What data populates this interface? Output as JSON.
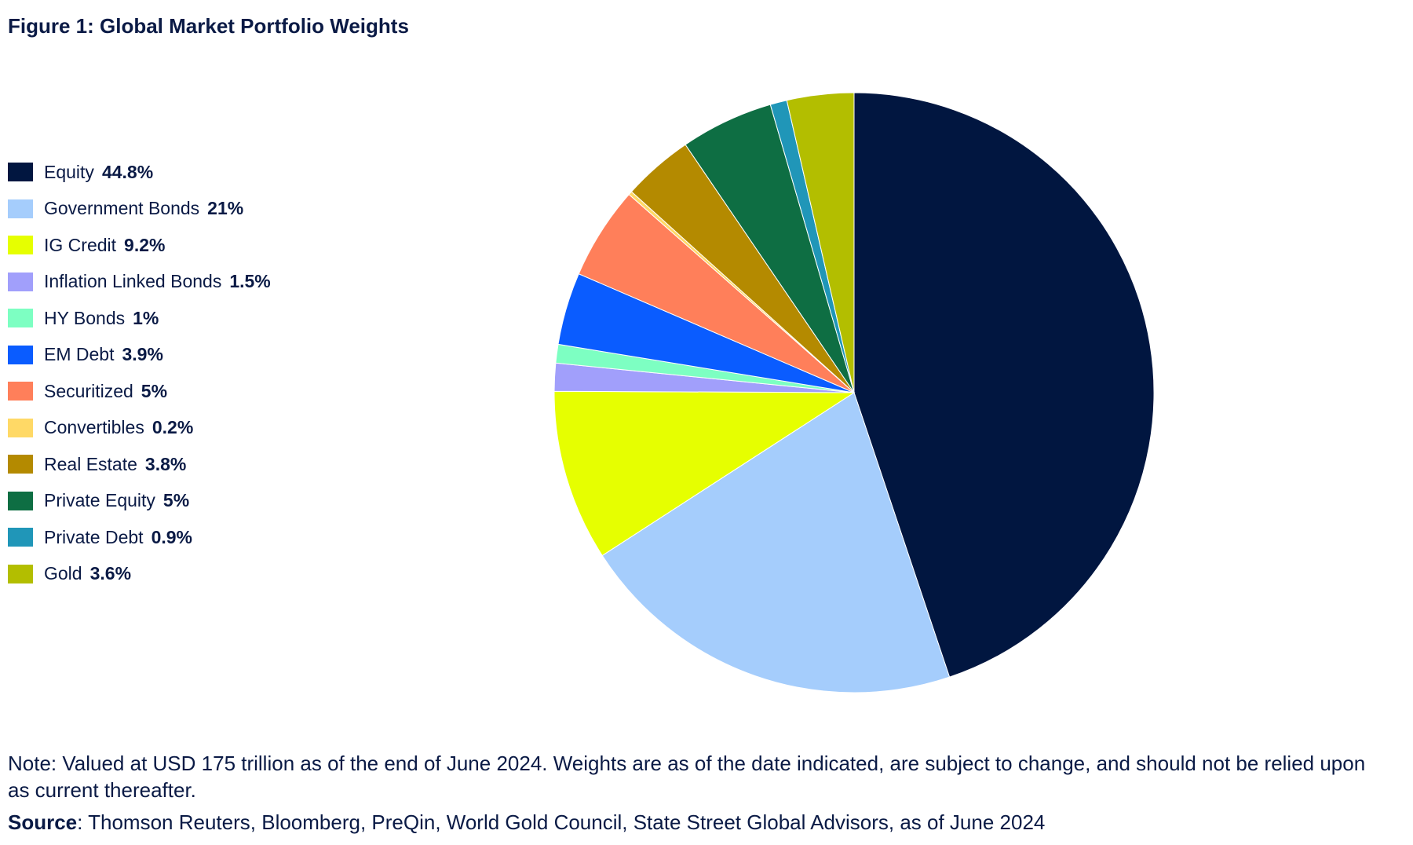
{
  "figure": {
    "title": "Figure 1: Global Market Portfolio Weights",
    "note": "Note: Valued at USD 175 trillion as of the end of June 2024. Weights are as of the date indicated, are subject to change, and should not be relied upon as current thereafter.",
    "source_label": "Source",
    "source_text": ": Thomson Reuters, Bloomberg, PreQin, World Gold Council, State Street Global Advisors, as of June 2024"
  },
  "chart_data": {
    "type": "pie",
    "title": "Figure 1: Global Market Portfolio Weights",
    "legend_position": "left",
    "slices": [
      {
        "label": "Equity",
        "value": 44.8,
        "value_text": "44.8%",
        "color": "#011640"
      },
      {
        "label": "Government Bonds",
        "value": 21,
        "value_text": "21%",
        "color": "#a5cdfc"
      },
      {
        "label": "IG Credit",
        "value": 9.2,
        "value_text": "9.2%",
        "color": "#e6ff00"
      },
      {
        "label": "Inflation Linked Bonds",
        "value": 1.5,
        "value_text": "1.5%",
        "color": "#a19ffb"
      },
      {
        "label": "HY Bonds",
        "value": 1,
        "value_text": "1%",
        "color": "#7dffc2"
      },
      {
        "label": "EM Debt",
        "value": 3.9,
        "value_text": "3.9%",
        "color": "#0a5cff"
      },
      {
        "label": "Securitized",
        "value": 5,
        "value_text": "5%",
        "color": "#ff7f5a"
      },
      {
        "label": "Convertibles",
        "value": 0.2,
        "value_text": "0.2%",
        "color": "#ffd966"
      },
      {
        "label": "Real Estate",
        "value": 3.8,
        "value_text": "3.8%",
        "color": "#b48a00"
      },
      {
        "label": "Private Equity",
        "value": 5,
        "value_text": "5%",
        "color": "#0e6e43"
      },
      {
        "label": "Private Debt",
        "value": 0.9,
        "value_text": "0.9%",
        "color": "#2096b8"
      },
      {
        "label": "Gold",
        "value": 3.6,
        "value_text": "3.6%",
        "color": "#b3be00"
      }
    ]
  }
}
